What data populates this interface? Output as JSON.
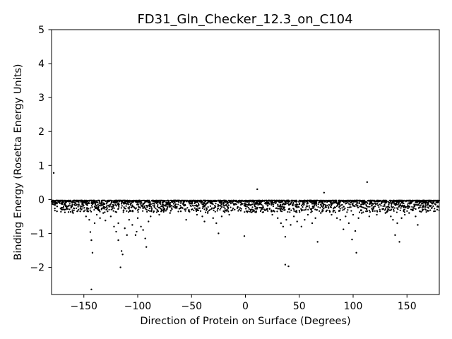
{
  "chart_data": {
    "type": "scatter",
    "title": "FD31_Gln_Checker_12.3_on_C104",
    "xlabel": "Direction of Protein on Surface (Degrees)",
    "ylabel": "Binding Energy (Rosetta Energy Units)",
    "xlim": [
      -180,
      180
    ],
    "ylim": [
      -2.8,
      5
    ],
    "xticks": [
      -150,
      -100,
      -50,
      0,
      50,
      100,
      150
    ],
    "yticks": [
      -2,
      -1,
      0,
      1,
      2,
      3,
      4,
      5
    ],
    "xtick_labels": [
      "−150",
      "−100",
      "−50",
      "0",
      "50",
      "100",
      "150"
    ],
    "ytick_labels": [
      "−2",
      "−1",
      "0",
      "1",
      "2",
      "3",
      "4",
      "5"
    ],
    "grid": false,
    "marker_color": "#000000",
    "series": [
      {
        "points": [
          [
            -178,
            0.78
          ],
          [
            -143,
            -2.65
          ],
          [
            -142,
            -1.57
          ],
          [
            -143,
            -1.2
          ],
          [
            -144,
            -0.96
          ],
          [
            -116,
            -2.0
          ],
          [
            -114,
            -1.62
          ],
          [
            -115,
            -1.52
          ],
          [
            -118,
            -1.2
          ],
          [
            -110,
            -1.05
          ],
          [
            -92,
            -1.4
          ],
          [
            -93,
            -1.15
          ],
          [
            -102,
            -1.05
          ],
          [
            -101,
            -0.95
          ],
          [
            -25,
            -1.0
          ],
          [
            -1,
            -1.08
          ],
          [
            11,
            0.3
          ],
          [
            37,
            -1.92
          ],
          [
            40,
            -1.97
          ],
          [
            37,
            -1.1
          ],
          [
            67,
            -1.25
          ],
          [
            73,
            0.2
          ],
          [
            91,
            -0.88
          ],
          [
            99,
            -1.18
          ],
          [
            103,
            -1.57
          ],
          [
            102,
            -0.93
          ],
          [
            113,
            0.51
          ],
          [
            139,
            -1.05
          ],
          [
            143,
            -1.25
          ],
          [
            160,
            -0.75
          ],
          [
            -175,
            -0.35
          ],
          [
            -170,
            -0.3
          ],
          [
            -165,
            -0.28
          ],
          [
            -160,
            -0.4
          ],
          [
            -155,
            -0.3
          ],
          [
            -150,
            -0.35
          ],
          [
            -148,
            -0.5
          ],
          [
            -145,
            -0.6
          ],
          [
            -140,
            -0.7
          ],
          [
            -138,
            -0.45
          ],
          [
            -135,
            -0.55
          ],
          [
            -132,
            -0.4
          ],
          [
            -130,
            -0.62
          ],
          [
            -128,
            -0.35
          ],
          [
            -125,
            -0.5
          ],
          [
            -122,
            -0.8
          ],
          [
            -120,
            -0.95
          ],
          [
            -118,
            -0.7
          ],
          [
            -112,
            -0.85
          ],
          [
            -108,
            -0.6
          ],
          [
            -105,
            -0.75
          ],
          [
            -100,
            -0.55
          ],
          [
            -97,
            -0.8
          ],
          [
            -95,
            -0.9
          ],
          [
            -90,
            -0.65
          ],
          [
            -88,
            -0.5
          ],
          [
            -85,
            -0.35
          ],
          [
            -80,
            -0.45
          ],
          [
            -75,
            -0.3
          ],
          [
            -70,
            -0.4
          ],
          [
            -65,
            -0.25
          ],
          [
            -60,
            -0.35
          ],
          [
            -55,
            -0.6
          ],
          [
            -50,
            -0.3
          ],
          [
            -45,
            -0.45
          ],
          [
            -40,
            -0.5
          ],
          [
            -38,
            -0.65
          ],
          [
            -35,
            -0.4
          ],
          [
            -30,
            -0.55
          ],
          [
            -27,
            -0.7
          ],
          [
            -22,
            -0.5
          ],
          [
            -20,
            -0.35
          ],
          [
            -15,
            -0.45
          ],
          [
            -10,
            -0.3
          ],
          [
            -5,
            -0.25
          ],
          [
            0,
            -0.2
          ],
          [
            5,
            -0.3
          ],
          [
            10,
            -0.35
          ],
          [
            15,
            -0.25
          ],
          [
            20,
            -0.3
          ],
          [
            25,
            -0.45
          ],
          [
            30,
            -0.55
          ],
          [
            33,
            -0.7
          ],
          [
            35,
            -0.8
          ],
          [
            38,
            -0.6
          ],
          [
            42,
            -0.75
          ],
          [
            45,
            -0.5
          ],
          [
            48,
            -0.65
          ],
          [
            52,
            -0.8
          ],
          [
            55,
            -0.6
          ],
          [
            58,
            -0.45
          ],
          [
            62,
            -0.7
          ],
          [
            65,
            -0.55
          ],
          [
            70,
            -0.4
          ],
          [
            75,
            -0.35
          ],
          [
            80,
            -0.45
          ],
          [
            85,
            -0.55
          ],
          [
            88,
            -0.6
          ],
          [
            93,
            -0.5
          ],
          [
            96,
            -0.7
          ],
          [
            100,
            -0.45
          ],
          [
            105,
            -0.55
          ],
          [
            108,
            -0.4
          ],
          [
            112,
            -0.35
          ],
          [
            115,
            -0.5
          ],
          [
            118,
            -0.3
          ],
          [
            122,
            -0.45
          ],
          [
            125,
            -0.35
          ],
          [
            130,
            -0.4
          ],
          [
            135,
            -0.5
          ],
          [
            137,
            -0.6
          ],
          [
            141,
            -0.7
          ],
          [
            145,
            -0.55
          ],
          [
            148,
            -0.45
          ],
          [
            152,
            -0.4
          ],
          [
            155,
            -0.3
          ],
          [
            158,
            -0.5
          ],
          [
            162,
            -0.35
          ],
          [
            165,
            -0.3
          ],
          [
            170,
            -0.25
          ],
          [
            175,
            -0.35
          ],
          [
            178,
            -0.3
          ]
        ]
      }
    ]
  }
}
